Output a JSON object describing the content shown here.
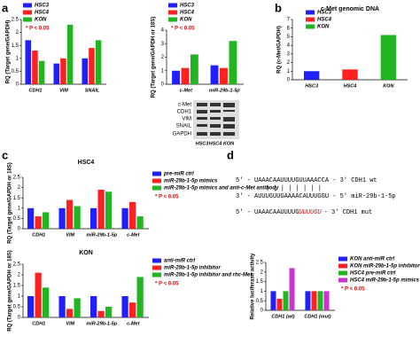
{
  "panels": [
    "a",
    "b",
    "c",
    "d"
  ],
  "blot": {
    "bands": [
      "c-Met",
      "CDH1",
      "VIM",
      "SNAIL",
      "GAPDH"
    ],
    "lanes": [
      "HSC3",
      "HSC4",
      "KON"
    ]
  },
  "sequence": {
    "wt": "5' - UAAACAAUUUUGUUAAACCA - 3' CDH1 wt",
    "mir": "3' - AUUUGUUGAAAACAUUUGGU - 5' miR-29b-1-5p",
    "mut_start": "5' - UAAACAAUUUUG",
    "mut_red": "UUUUGU",
    "mut_end": "- 3' CDH1 mut"
  },
  "chart_data": [
    {
      "type": "bar",
      "ylabel": "RQ (Target gene/GAPDH)",
      "note": "* P < 0.05",
      "categories": [
        "CDH1",
        "VIM",
        "SNAIL"
      ],
      "series": [
        {
          "name": "HSC3",
          "color": "#1f1fff",
          "values": [
            1.7,
            0.8,
            1.0
          ]
        },
        {
          "name": "HSC4",
          "color": "#ff2020",
          "values": [
            1.3,
            1.0,
            1.4
          ]
        },
        {
          "name": "KON",
          "color": "#22b522",
          "values": [
            0.9,
            2.3,
            1.7
          ]
        }
      ],
      "ylim": [
        0,
        2.5
      ],
      "yticks": [
        0,
        0.5,
        1,
        1.5,
        2,
        2.5
      ]
    },
    {
      "type": "bar",
      "ylabel": "RQ (Target gene/GAPDH or 18S)",
      "note": "* P < 0.05",
      "categories": [
        "c-Met",
        "miR-29b-1-5p"
      ],
      "series": [
        {
          "name": "HSC3",
          "color": "#1f1fff",
          "values": [
            1.0,
            1.4
          ]
        },
        {
          "name": "HSC4",
          "color": "#ff2020",
          "values": [
            1.2,
            1.2
          ]
        },
        {
          "name": "KON",
          "color": "#22b522",
          "values": [
            2.2,
            3.2
          ]
        }
      ],
      "ylim": [
        0,
        4
      ],
      "yticks": [
        0,
        1,
        2,
        3,
        4
      ]
    },
    {
      "type": "bar",
      "title": "c-Met genomic DNA",
      "ylabel": "RQ (c-Met/GAPDH)",
      "categories": [
        "HSC3",
        "HSC4",
        "KON"
      ],
      "values": [
        1.0,
        1.2,
        5.2
      ],
      "colors": [
        "#1f1fff",
        "#ff2020",
        "#22b522"
      ],
      "ylim": [
        0,
        7
      ],
      "yticks": [
        0,
        1,
        2,
        3,
        4,
        5,
        6,
        7
      ]
    },
    {
      "type": "bar",
      "title": "HSC4",
      "ylabel": "RQ (Target gene/GAPDH or 18S)",
      "note": "* P < 0.05",
      "categories": [
        "CDH1",
        "VIM",
        "miR-29b-1-5p",
        "c-Met"
      ],
      "series": [
        {
          "name": "pre-miR ctrl",
          "color": "#1f1fff",
          "values": [
            1.0,
            1.0,
            1.0,
            1.0
          ]
        },
        {
          "name": "miR-29b-1-5p mimics",
          "color": "#ff2020",
          "values": [
            0.6,
            1.4,
            1.9,
            1.3
          ]
        },
        {
          "name": "miR-29b-1-5p mimics and anti-c-Met antibody",
          "color": "#22b522",
          "values": [
            0.8,
            1.1,
            1.8,
            0.6
          ]
        }
      ],
      "ylim": [
        0,
        2.5
      ],
      "yticks": [
        0,
        0.5,
        1,
        1.5,
        2,
        2.5
      ]
    },
    {
      "type": "bar",
      "title": "KON",
      "ylabel": "RQ (Target gene/GAPDH or 18S)",
      "note": "* P < 0.05",
      "categories": [
        "CDH1",
        "VIM",
        "miR-29b-1-5p",
        "c-Met"
      ],
      "series": [
        {
          "name": "anti-miR ctrl",
          "color": "#1f1fff",
          "values": [
            1.0,
            1.0,
            1.0,
            1.0
          ]
        },
        {
          "name": "miR-29b-1-5p inhibitor",
          "color": "#ff2020",
          "values": [
            2.1,
            0.4,
            0.3,
            0.7
          ]
        },
        {
          "name": "miR-29b-1-5p inhibitor and rhc-Met",
          "color": "#22b522",
          "values": [
            1.4,
            0.9,
            0.5,
            1.9
          ]
        }
      ],
      "ylim": [
        0,
        2.5
      ],
      "yticks": [
        0,
        0.5,
        1,
        1.5,
        2,
        2.5
      ]
    },
    {
      "type": "bar",
      "ylabel": "Relative luciferase activity",
      "note": "* P < 0.05",
      "categories": [
        "CDH1 (wt)",
        "CDH1 (mut)"
      ],
      "series": [
        {
          "name": "KON anti-miR ctrl",
          "color": "#1f1fff",
          "values": [
            1.0,
            1.0
          ]
        },
        {
          "name": "KON miR-29b-1-5p inhibitor",
          "color": "#ff2020",
          "values": [
            0.6,
            1.0
          ]
        },
        {
          "name": "HSC4 pre-miR ctrl",
          "color": "#22b522",
          "values": [
            1.0,
            1.0
          ]
        },
        {
          "name": "HSC4 miR-29b-1-5p mimics",
          "color": "#cc33cc",
          "values": [
            2.2,
            1.0
          ]
        }
      ],
      "ylim": [
        0,
        2.5
      ],
      "yticks": [
        0,
        0.5,
        1,
        1.5,
        2,
        2.5
      ]
    }
  ]
}
